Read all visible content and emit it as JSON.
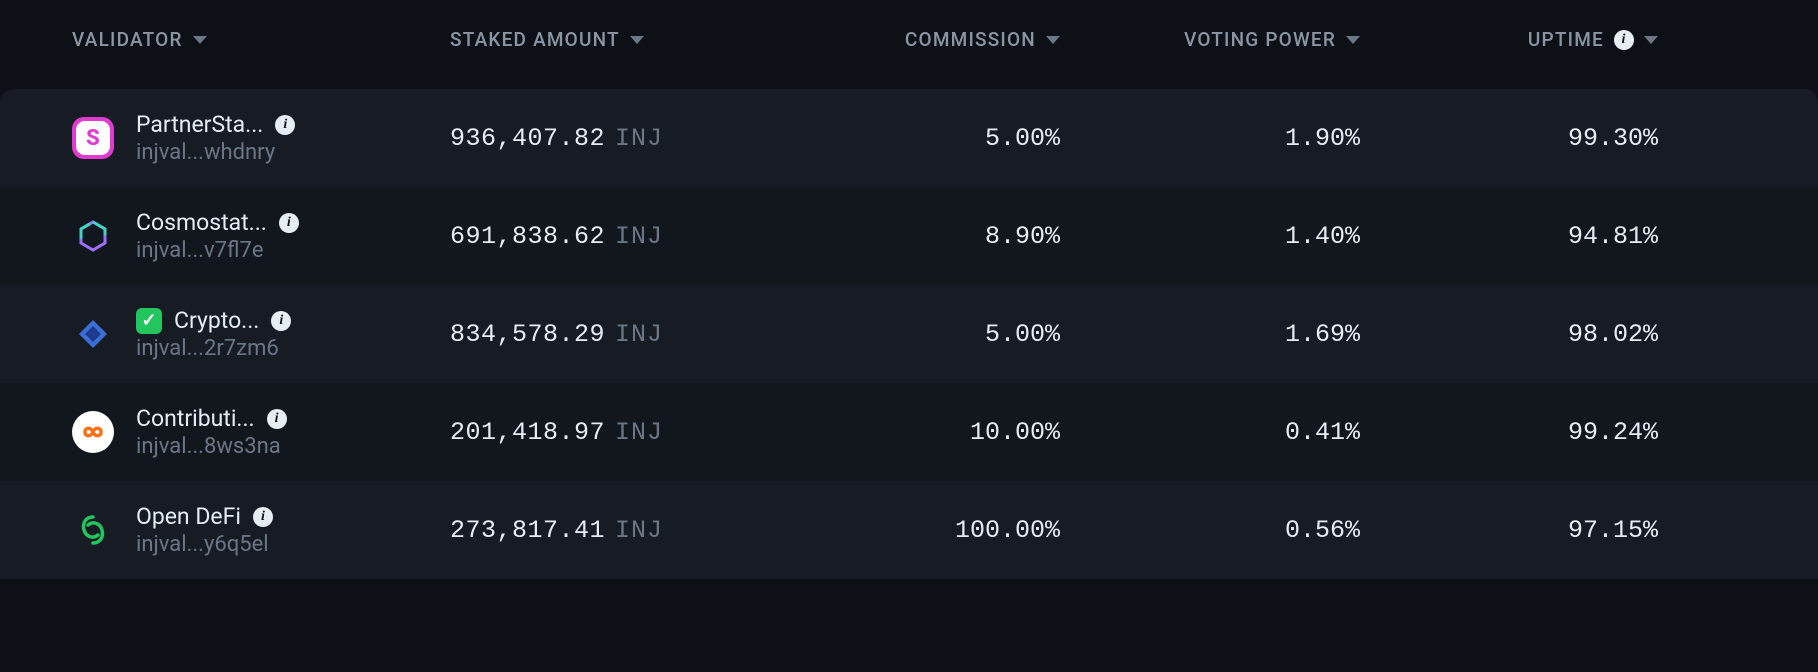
{
  "headers": {
    "validator": "VALIDATOR",
    "staked": "STAKED AMOUNT",
    "commission": "COMMISSION",
    "voting": "VOTING POWER",
    "uptime": "UPTIME"
  },
  "token_unit": "INJ",
  "colors": {
    "page_bg": "#0d1117",
    "row_odd_bg": "#171b23",
    "row_even_bg": "#12161d",
    "text_primary": "#e6edf3",
    "text_muted": "#6b7687",
    "verified_badge": "#22c55e"
  },
  "rows": [
    {
      "name": "PartnerSta...",
      "address": "injval...whdnry",
      "verified": false,
      "staked": "936,407.82",
      "commission": "5.00%",
      "voting": "1.90%",
      "uptime": "99.30%",
      "avatar": {
        "bg": "#e23bd0",
        "glyph": "S",
        "glyph_color": "#ffffff",
        "shape": "rounded-square"
      }
    },
    {
      "name": "Cosmostat...",
      "address": "injval...v7fl7e",
      "verified": false,
      "staked": "691,838.62",
      "commission": "8.90%",
      "voting": "1.40%",
      "uptime": "94.81%",
      "avatar": {
        "bg": "#14181f",
        "glyph": "hex",
        "glyph_color": "#9e6fff",
        "shape": "icon"
      }
    },
    {
      "name": "Crypto...",
      "address": "injval...2r7zm6",
      "verified": true,
      "staked": "834,578.29",
      "commission": "5.00%",
      "voting": "1.69%",
      "uptime": "98.02%",
      "avatar": {
        "bg": "#14181f",
        "glyph": "diamond",
        "glyph_color": "#3b6fd8",
        "shape": "icon"
      }
    },
    {
      "name": "Contributi...",
      "address": "injval...8ws3na",
      "verified": false,
      "staked": "201,418.97",
      "commission": "10.00%",
      "voting": "0.41%",
      "uptime": "99.24%",
      "avatar": {
        "bg": "#ffffff",
        "glyph": "infinity",
        "glyph_color": "#f97316",
        "shape": "circle"
      }
    },
    {
      "name": "Open DeFi",
      "address": "injval...y6q5el",
      "verified": false,
      "staked": "273,817.41",
      "commission": "100.00%",
      "voting": "0.56%",
      "uptime": "97.15%",
      "avatar": {
        "bg": "#14181f",
        "glyph": "swirl",
        "glyph_color": "#22c55e",
        "shape": "icon"
      }
    }
  ]
}
